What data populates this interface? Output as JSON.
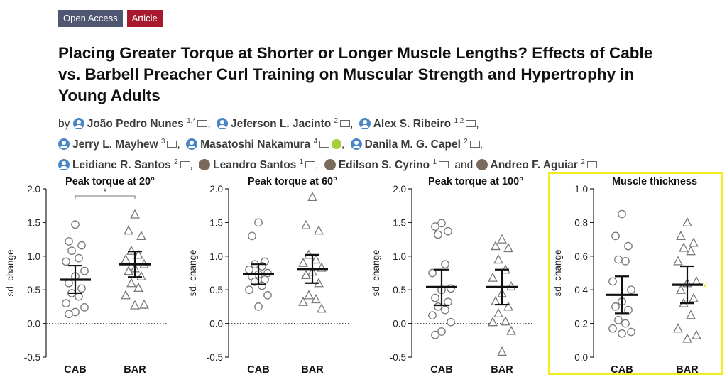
{
  "badges": {
    "open_access": "Open Access",
    "article": "Article"
  },
  "title": "Placing Greater Torque at Shorter or Longer Muscle Lengths? Effects of Cable vs. Barbell Preacher Curl Training on Muscular Strength and Hypertrophy in Young Adults",
  "authors": {
    "by": "by",
    "and": "and",
    "list": [
      {
        "name": "João Pedro Nunes",
        "aff": "1,*",
        "icon": "person-icon"
      },
      {
        "name": "Jeferson L. Jacinto",
        "aff": "2",
        "icon": "person-icon"
      },
      {
        "name": "Alex S. Ribeiro",
        "aff": "1,2",
        "icon": "person-icon"
      },
      {
        "name": "Jerry L. Mayhew",
        "aff": "3",
        "icon": "person-icon"
      },
      {
        "name": "Masatoshi Nakamura",
        "aff": "4",
        "icon": "person-icon"
      },
      {
        "name": "Danila M. G. Capel",
        "aff": "2",
        "icon": "person-icon"
      },
      {
        "name": "Leidiane R. Santos",
        "aff": "2",
        "icon": "person-icon"
      },
      {
        "name": "Leandro Santos",
        "aff": "1",
        "icon": "photo-icon"
      },
      {
        "name": "Edilson S. Cyrino",
        "aff": "1",
        "icon": "photo-icon"
      },
      {
        "name": "Andreo F. Aguiar",
        "aff": "2",
        "icon": "photo-icon"
      }
    ]
  },
  "annotation_mark": "x",
  "chart_data": [
    {
      "type": "scatter",
      "title": "Peak torque at 20°",
      "ylabel": "sd. change",
      "categories": [
        "CAB",
        "BAR"
      ],
      "ylim": [
        -0.5,
        2.0
      ],
      "yticks": [
        "-0.5",
        "0.0",
        "0.5",
        "1.0",
        "1.5",
        "2.0"
      ],
      "significance": "*",
      "zero_line": true,
      "series": [
        {
          "name": "CAB",
          "marker": "circle",
          "values": [
            1.47,
            1.22,
            1.16,
            1.08,
            0.97,
            0.92,
            0.78,
            0.7,
            0.6,
            0.52,
            0.45,
            0.4,
            0.3,
            0.24,
            0.17,
            0.14
          ],
          "mean": 0.65,
          "ci": [
            0.45,
            0.86
          ]
        },
        {
          "name": "BAR",
          "marker": "triangle",
          "values": [
            1.62,
            1.38,
            1.3,
            1.08,
            1.02,
            0.95,
            0.88,
            0.82,
            0.78,
            0.7,
            0.6,
            0.53,
            0.42,
            0.28,
            0.27
          ],
          "mean": 0.88,
          "ci": [
            0.69,
            1.07
          ]
        }
      ]
    },
    {
      "type": "scatter",
      "title": "Peak torque at 60°",
      "ylabel": "sd. change",
      "categories": [
        "CAB",
        "BAR"
      ],
      "ylim": [
        -0.5,
        2.0
      ],
      "yticks": [
        "-0.5",
        "0.0",
        "0.5",
        "1.0",
        "1.5",
        "2.0"
      ],
      "zero_line": true,
      "series": [
        {
          "name": "CAB",
          "marker": "circle",
          "values": [
            1.5,
            1.3,
            0.92,
            0.88,
            0.85,
            0.8,
            0.75,
            0.73,
            0.7,
            0.65,
            0.62,
            0.56,
            0.5,
            0.42,
            0.25
          ],
          "mean": 0.73,
          "ci": [
            0.58,
            0.88
          ]
        },
        {
          "name": "BAR",
          "marker": "triangle",
          "values": [
            1.88,
            1.46,
            1.38,
            1.02,
            0.95,
            0.9,
            0.83,
            0.77,
            0.72,
            0.6,
            0.42,
            0.36,
            0.32,
            0.22
          ],
          "mean": 0.81,
          "ci": [
            0.6,
            1.02
          ]
        }
      ]
    },
    {
      "type": "scatter",
      "title": "Peak torque at 100°",
      "ylabel": "sd. change",
      "categories": [
        "CAB",
        "BAR"
      ],
      "ylim": [
        -0.5,
        2.0
      ],
      "yticks": [
        "-0.5",
        "0.0",
        "0.5",
        "1.0",
        "1.5",
        "2.0"
      ],
      "zero_line": true,
      "series": [
        {
          "name": "CAB",
          "marker": "circle",
          "values": [
            1.49,
            1.44,
            1.37,
            1.32,
            0.88,
            0.75,
            0.52,
            0.5,
            0.38,
            0.32,
            0.25,
            0.2,
            0.12,
            0.02,
            -0.12,
            -0.17
          ],
          "mean": 0.54,
          "ci": [
            0.27,
            0.8
          ]
        },
        {
          "name": "BAR",
          "marker": "triangle",
          "values": [
            1.25,
            1.15,
            1.12,
            0.95,
            0.8,
            0.68,
            0.55,
            0.45,
            0.33,
            0.25,
            0.15,
            0.03,
            0.02,
            -0.11,
            -0.42
          ],
          "mean": 0.54,
          "ci": [
            0.28,
            0.8
          ]
        }
      ]
    },
    {
      "type": "scatter",
      "title": "Muscle thickness",
      "ylabel": "sd. change",
      "categories": [
        "CAB",
        "BAR"
      ],
      "ylim": [
        0.0,
        1.0
      ],
      "yticks": [
        "0.0",
        "0.2",
        "0.4",
        "0.6",
        "0.8",
        "1.0"
      ],
      "zero_line": false,
      "series": [
        {
          "name": "CAB",
          "marker": "circle",
          "values": [
            0.85,
            0.72,
            0.66,
            0.58,
            0.57,
            0.45,
            0.4,
            0.33,
            0.3,
            0.28,
            0.22,
            0.2,
            0.17,
            0.15,
            0.14
          ],
          "mean": 0.37,
          "ci": [
            0.26,
            0.48
          ]
        },
        {
          "name": "BAR",
          "marker": "triangle",
          "values": [
            0.8,
            0.72,
            0.68,
            0.65,
            0.63,
            0.57,
            0.45,
            0.44,
            0.4,
            0.35,
            0.32,
            0.25,
            0.17,
            0.13,
            0.11
          ],
          "mean": 0.43,
          "ci": [
            0.32,
            0.54
          ]
        }
      ]
    }
  ],
  "colors": {
    "highlight": "#f2ee1d",
    "open_access_badge": "#4f5671",
    "article_badge": "#a8192e",
    "author_icon": "#4a86c5",
    "orcid": "#a6ce39"
  }
}
